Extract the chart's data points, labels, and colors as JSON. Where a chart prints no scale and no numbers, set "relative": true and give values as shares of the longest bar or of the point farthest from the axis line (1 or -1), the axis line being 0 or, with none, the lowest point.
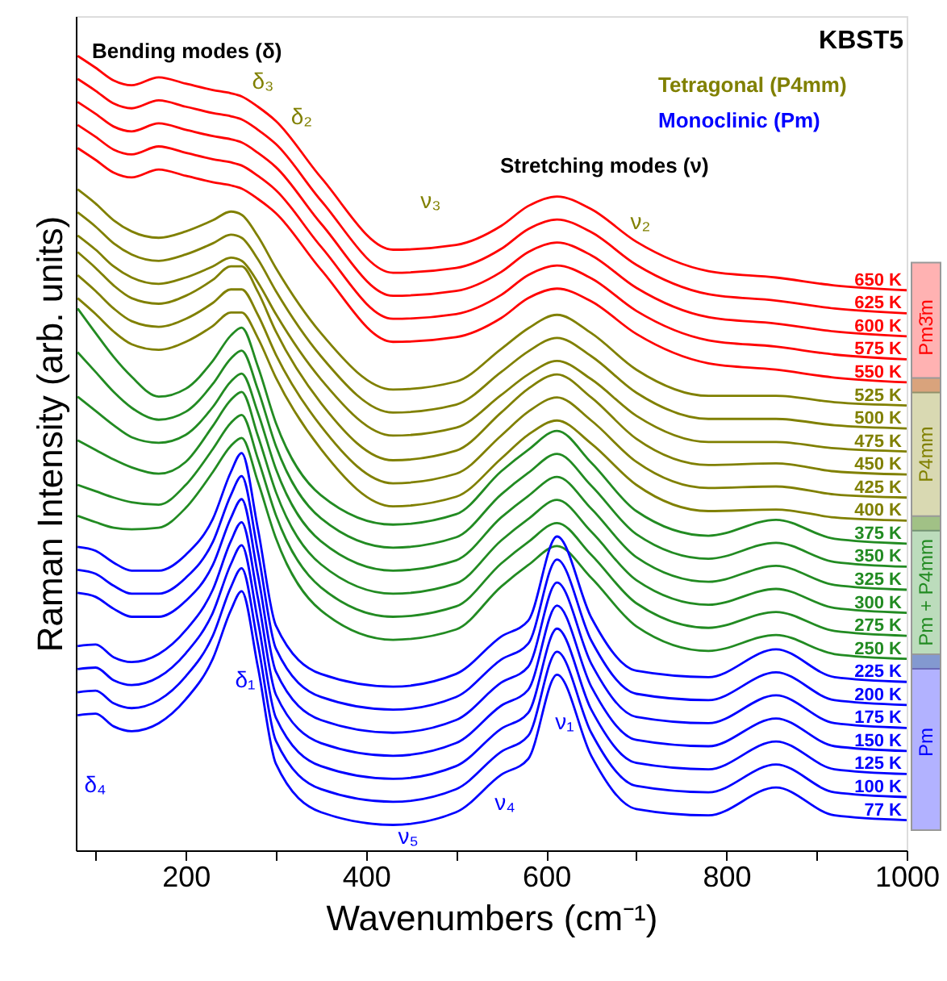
{
  "chart_data": {
    "type": "line",
    "relative": true,
    "xlabel": "Wavenumbers (cm⁻¹)",
    "ylabel": "Raman Intensity (arb. units)",
    "xlim": [
      78,
      1000
    ],
    "xticks": [
      {
        "value": 100,
        "label": null
      },
      200,
      {
        "value": 300,
        "label": null
      },
      400,
      {
        "value": 500,
        "label": null
      },
      600,
      {
        "value": 700,
        "label": null
      },
      800,
      {
        "value": 900,
        "label": null
      },
      1000
    ],
    "x": [
      80,
      100,
      120,
      140,
      170,
      200,
      230,
      250,
      262,
      280,
      300,
      350,
      430,
      500,
      550,
      580,
      612,
      650,
      700,
      780,
      855,
      920,
      1000
    ],
    "series": [
      {
        "name": "650 K",
        "color": "#ff0000",
        "values": [
          1.0,
          0.985,
          0.969,
          0.963,
          0.973,
          0.965,
          0.957,
          0.953,
          0.949,
          0.936,
          0.918,
          0.847,
          0.756,
          0.762,
          0.786,
          0.811,
          0.823,
          0.807,
          0.766,
          0.729,
          0.721,
          0.711,
          0.705
        ]
      },
      {
        "name": "625 K",
        "color": "#ff0000",
        "values": [
          0.971,
          0.956,
          0.94,
          0.934,
          0.944,
          0.936,
          0.928,
          0.924,
          0.92,
          0.907,
          0.889,
          0.818,
          0.727,
          0.733,
          0.757,
          0.782,
          0.794,
          0.778,
          0.737,
          0.7,
          0.692,
          0.682,
          0.676
        ]
      },
      {
        "name": "600 K",
        "color": "#ff0000",
        "values": [
          0.942,
          0.927,
          0.911,
          0.905,
          0.915,
          0.907,
          0.899,
          0.895,
          0.891,
          0.878,
          0.86,
          0.789,
          0.698,
          0.704,
          0.728,
          0.753,
          0.765,
          0.749,
          0.708,
          0.671,
          0.663,
          0.653,
          0.647
        ]
      },
      {
        "name": "575 K",
        "color": "#ff0000",
        "values": [
          0.913,
          0.898,
          0.882,
          0.876,
          0.886,
          0.878,
          0.87,
          0.866,
          0.862,
          0.849,
          0.831,
          0.76,
          0.669,
          0.675,
          0.699,
          0.724,
          0.736,
          0.72,
          0.679,
          0.642,
          0.634,
          0.624,
          0.618
        ]
      },
      {
        "name": "550 K",
        "color": "#ff0000",
        "values": [
          0.884,
          0.869,
          0.853,
          0.847,
          0.857,
          0.849,
          0.841,
          0.837,
          0.833,
          0.82,
          0.802,
          0.731,
          0.64,
          0.646,
          0.67,
          0.695,
          0.707,
          0.691,
          0.65,
          0.613,
          0.605,
          0.595,
          0.589
        ]
      },
      {
        "name": "525 K",
        "color": "#808000",
        "values": [
          0.832,
          0.814,
          0.793,
          0.779,
          0.771,
          0.779,
          0.793,
          0.804,
          0.8,
          0.773,
          0.733,
          0.651,
          0.58,
          0.59,
          0.631,
          0.657,
          0.674,
          0.651,
          0.605,
          0.572,
          0.572,
          0.564,
          0.56
        ]
      },
      {
        "name": "500 K",
        "color": "#808000",
        "values": [
          0.803,
          0.785,
          0.764,
          0.75,
          0.742,
          0.75,
          0.764,
          0.775,
          0.771,
          0.744,
          0.704,
          0.622,
          0.551,
          0.561,
          0.602,
          0.628,
          0.645,
          0.622,
          0.576,
          0.543,
          0.543,
          0.535,
          0.531
        ]
      },
      {
        "name": "475 K",
        "color": "#808000",
        "values": [
          0.774,
          0.756,
          0.735,
          0.721,
          0.713,
          0.721,
          0.735,
          0.746,
          0.742,
          0.715,
          0.675,
          0.593,
          0.522,
          0.532,
          0.573,
          0.599,
          0.616,
          0.593,
          0.547,
          0.514,
          0.514,
          0.506,
          0.502
        ]
      },
      {
        "name": "450 K",
        "color": "#808000",
        "values": [
          0.753,
          0.733,
          0.711,
          0.695,
          0.688,
          0.698,
          0.718,
          0.735,
          0.735,
          0.703,
          0.653,
          0.563,
          0.491,
          0.503,
          0.551,
          0.581,
          0.599,
          0.57,
          0.518,
          0.485,
          0.487,
          0.477,
          0.473
        ]
      },
      {
        "name": "425 K",
        "color": "#808000",
        "values": [
          0.724,
          0.704,
          0.682,
          0.666,
          0.659,
          0.669,
          0.689,
          0.706,
          0.706,
          0.674,
          0.624,
          0.534,
          0.462,
          0.474,
          0.522,
          0.552,
          0.57,
          0.541,
          0.489,
          0.456,
          0.458,
          0.448,
          0.444
        ]
      },
      {
        "name": "400 K",
        "color": "#808000",
        "values": [
          0.695,
          0.675,
          0.653,
          0.637,
          0.63,
          0.64,
          0.66,
          0.677,
          0.677,
          0.645,
          0.595,
          0.505,
          0.433,
          0.445,
          0.493,
          0.523,
          0.541,
          0.512,
          0.46,
          0.427,
          0.429,
          0.419,
          0.415
        ]
      },
      {
        "name": "375 K",
        "color": "#228b22",
        "values": [
          0.682,
          0.651,
          0.621,
          0.596,
          0.571,
          0.581,
          0.616,
          0.648,
          0.658,
          0.609,
          0.538,
          0.447,
          0.41,
          0.423,
          0.477,
          0.504,
          0.528,
          0.488,
          0.427,
          0.396,
          0.416,
          0.392,
          0.386
        ]
      },
      {
        "name": "350 K",
        "color": "#228b22",
        "values": [
          0.627,
          0.602,
          0.577,
          0.557,
          0.542,
          0.552,
          0.587,
          0.619,
          0.629,
          0.58,
          0.509,
          0.418,
          0.381,
          0.394,
          0.448,
          0.475,
          0.499,
          0.459,
          0.398,
          0.367,
          0.387,
          0.363,
          0.357
        ]
      },
      {
        "name": "325 K",
        "color": "#228b22",
        "values": [
          0.571,
          0.553,
          0.535,
          0.52,
          0.513,
          0.523,
          0.558,
          0.59,
          0.6,
          0.551,
          0.48,
          0.389,
          0.352,
          0.365,
          0.419,
          0.446,
          0.47,
          0.43,
          0.369,
          0.338,
          0.358,
          0.334,
          0.328
        ]
      },
      {
        "name": "300 K",
        "color": "#228b22",
        "values": [
          0.516,
          0.504,
          0.492,
          0.482,
          0.474,
          0.489,
          0.534,
          0.567,
          0.577,
          0.522,
          0.451,
          0.36,
          0.323,
          0.336,
          0.39,
          0.417,
          0.441,
          0.401,
          0.34,
          0.309,
          0.329,
          0.305,
          0.299
        ]
      },
      {
        "name": "275 K",
        "color": "#228b22",
        "values": [
          0.46,
          0.452,
          0.444,
          0.438,
          0.435,
          0.46,
          0.505,
          0.538,
          0.548,
          0.493,
          0.422,
          0.331,
          0.294,
          0.307,
          0.361,
          0.388,
          0.412,
          0.372,
          0.311,
          0.28,
          0.3,
          0.276,
          0.27
        ]
      },
      {
        "name": "250 K",
        "color": "#228b22",
        "values": [
          0.421,
          0.413,
          0.406,
          0.404,
          0.406,
          0.431,
          0.476,
          0.509,
          0.519,
          0.464,
          0.393,
          0.302,
          0.265,
          0.278,
          0.332,
          0.359,
          0.383,
          0.343,
          0.282,
          0.251,
          0.271,
          0.247,
          0.241
        ]
      },
      {
        "name": "225 K",
        "color": "#0000ff",
        "values": [
          0.382,
          0.377,
          0.362,
          0.352,
          0.352,
          0.372,
          0.417,
          0.476,
          0.5,
          0.405,
          0.283,
          0.222,
          0.206,
          0.222,
          0.269,
          0.289,
          0.395,
          0.293,
          0.226,
          0.218,
          0.253,
          0.218,
          0.212
        ]
      },
      {
        "name": "200 K",
        "color": "#0000ff",
        "values": [
          0.353,
          0.348,
          0.333,
          0.323,
          0.323,
          0.343,
          0.388,
          0.447,
          0.471,
          0.376,
          0.254,
          0.193,
          0.177,
          0.193,
          0.24,
          0.26,
          0.366,
          0.264,
          0.197,
          0.189,
          0.224,
          0.189,
          0.183
        ]
      },
      {
        "name": "175 K",
        "color": "#0000ff",
        "values": [
          0.324,
          0.319,
          0.304,
          0.294,
          0.294,
          0.314,
          0.359,
          0.418,
          0.442,
          0.347,
          0.225,
          0.164,
          0.148,
          0.164,
          0.211,
          0.231,
          0.337,
          0.235,
          0.168,
          0.16,
          0.195,
          0.16,
          0.154
        ]
      },
      {
        "name": "150 K",
        "color": "#0000ff",
        "values": [
          0.257,
          0.259,
          0.243,
          0.237,
          0.247,
          0.277,
          0.328,
          0.389,
          0.413,
          0.318,
          0.196,
          0.135,
          0.119,
          0.135,
          0.182,
          0.202,
          0.308,
          0.206,
          0.139,
          0.131,
          0.166,
          0.131,
          0.125
        ]
      },
      {
        "name": "125 K",
        "color": "#0000ff",
        "values": [
          0.228,
          0.23,
          0.214,
          0.208,
          0.218,
          0.248,
          0.299,
          0.36,
          0.384,
          0.289,
          0.167,
          0.106,
          0.09,
          0.106,
          0.153,
          0.173,
          0.279,
          0.177,
          0.11,
          0.102,
          0.137,
          0.102,
          0.096
        ]
      },
      {
        "name": "100 K",
        "color": "#0000ff",
        "values": [
          0.199,
          0.201,
          0.185,
          0.179,
          0.189,
          0.219,
          0.27,
          0.331,
          0.355,
          0.26,
          0.138,
          0.077,
          0.061,
          0.077,
          0.124,
          0.144,
          0.25,
          0.148,
          0.081,
          0.073,
          0.108,
          0.073,
          0.067
        ]
      },
      {
        "name": "77 K",
        "color": "#0000ff",
        "values": [
          0.17,
          0.172,
          0.156,
          0.15,
          0.16,
          0.19,
          0.241,
          0.302,
          0.326,
          0.231,
          0.109,
          0.048,
          0.032,
          0.048,
          0.095,
          0.115,
          0.221,
          0.119,
          0.052,
          0.044,
          0.079,
          0.044,
          0.038
        ]
      }
    ],
    "annotations": [
      "δ₃",
      "δ₂",
      "δ₁",
      "δ₄",
      "ν₃",
      "ν₂",
      "ν₁",
      "ν₄",
      "ν₅",
      "KBST5",
      "Bending modes (δ)",
      "Tetragonal (P4mm)",
      "Monoclinic (Pm)",
      "Stretching modes (ν)",
      "Pm3̄m",
      "P4mm",
      "Pm + P4mm",
      "Pm"
    ]
  }
}
